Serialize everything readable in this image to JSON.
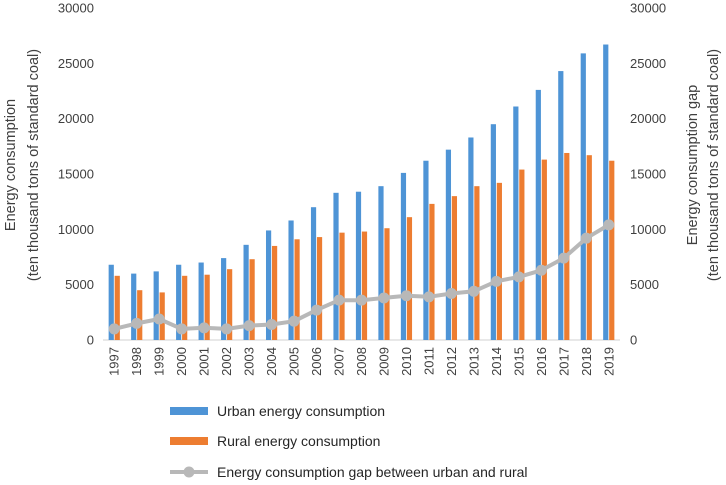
{
  "chart_data": {
    "type": "bar",
    "categories": [
      "1997",
      "1998",
      "1999",
      "2000",
      "2001",
      "2002",
      "2003",
      "2004",
      "2005",
      "2006",
      "2007",
      "2008",
      "2009",
      "2010",
      "2011",
      "2012",
      "2013",
      "2014",
      "2015",
      "2016",
      "2017",
      "2018",
      "2019"
    ],
    "series": [
      {
        "name": "Urban energy consumption",
        "type": "bar",
        "axis": "left",
        "color": "#4e94d6",
        "values": [
          6800,
          6000,
          6200,
          6800,
          7000,
          7400,
          8600,
          9900,
          10800,
          12000,
          13300,
          13400,
          13900,
          15100,
          16200,
          17200,
          18300,
          19500,
          21100,
          22600,
          24300,
          25900,
          26700
        ]
      },
      {
        "name": "Rural energy consumption",
        "type": "bar",
        "axis": "left",
        "color": "#ed7d31",
        "values": [
          5800,
          4500,
          4300,
          5800,
          5900,
          6400,
          7300,
          8500,
          9100,
          9300,
          9700,
          9800,
          10100,
          11100,
          12300,
          13000,
          13900,
          14200,
          15400,
          16300,
          16900,
          16700,
          16200
        ]
      },
      {
        "name": "Energy consumption gap between urban and rural",
        "type": "line",
        "axis": "right",
        "color": "#b8b8b8",
        "values": [
          1000,
          1500,
          1900,
          1000,
          1100,
          1000,
          1300,
          1400,
          1700,
          2700,
          3600,
          3600,
          3800,
          4000,
          3900,
          4200,
          4400,
          5300,
          5700,
          6300,
          7400,
          9200,
          10400
        ]
      }
    ],
    "ylabel": "Energy consumption",
    "ylabel_line2": "(ten thousand tons of standard coal)",
    "y2label": "Energy consumption gap",
    "y2label_line2": "(ten thousand tons of standard coal)",
    "ylim": [
      0,
      30000
    ],
    "y2lim": [
      0,
      30000
    ],
    "yticks": [
      0,
      5000,
      10000,
      15000,
      20000,
      25000,
      30000
    ],
    "ytick_labels": [
      "0",
      "5000",
      "10000",
      "15000",
      "20000",
      "25000",
      "30000"
    ],
    "legend_position": "bottom",
    "grid": false
  }
}
